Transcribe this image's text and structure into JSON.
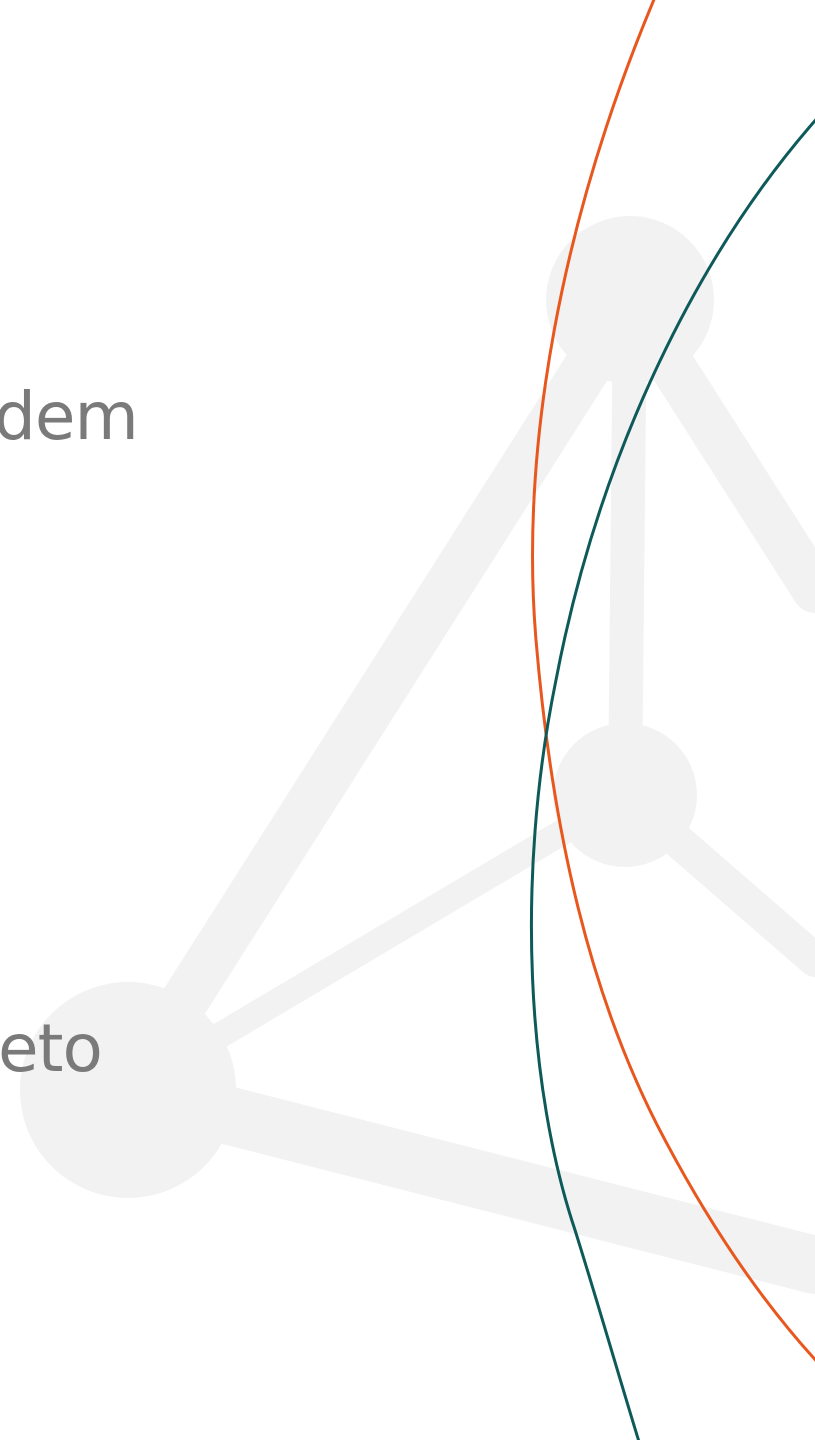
{
  "text_fragments": {
    "top": "dem",
    "bottom": "eto"
  },
  "colors": {
    "background": "#ffffff",
    "network_shape": "#f2f2f2",
    "text": "#7a7a7a",
    "orange_arc": "#e8571e",
    "teal_arc": "#0e5a5a"
  },
  "decorations": {
    "background_graphic": "molecule-network-icon",
    "arcs": [
      "orange-arc",
      "teal-arc"
    ]
  }
}
